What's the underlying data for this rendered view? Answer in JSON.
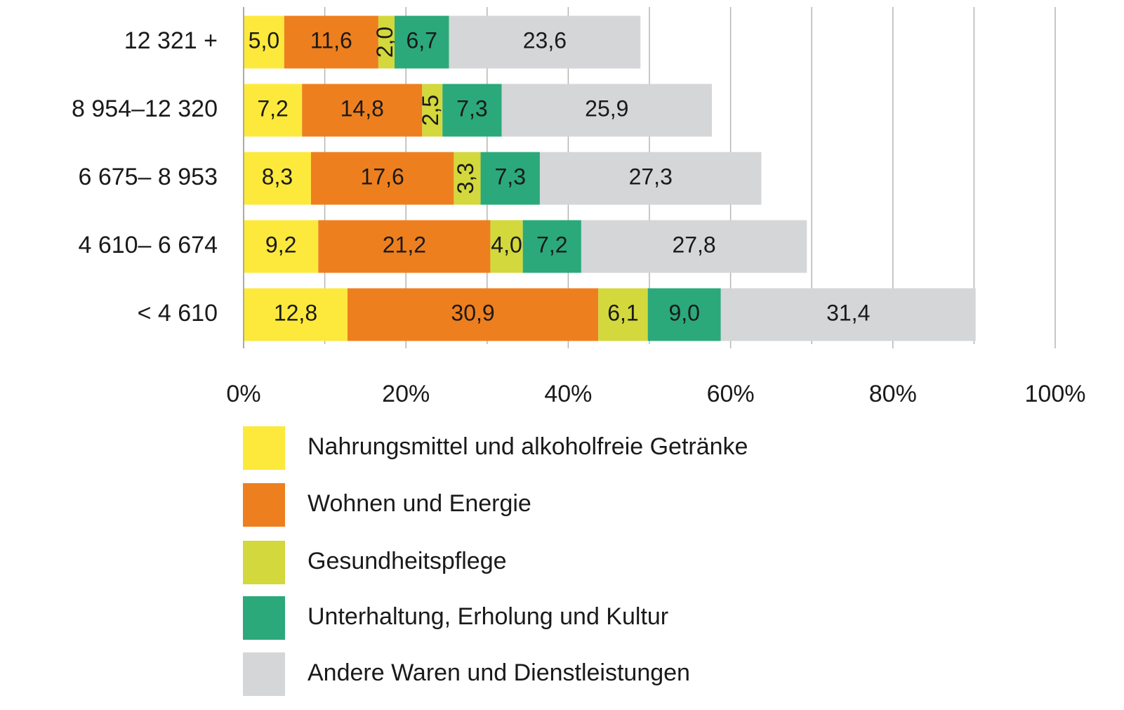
{
  "chart_data": {
    "type": "stacked_barh",
    "categories": [
      "12 321 +",
      "8 954–12 320",
      "6 675– 8 953",
      "4 610– 6 674",
      "< 4 610"
    ],
    "series": [
      {
        "name": "Nahrungsmittel und alkoholfreie Getränke",
        "color": "#fce93c",
        "values": [
          5.0,
          7.2,
          8.3,
          9.2,
          12.8
        ],
        "value_labels": [
          "5,0",
          "7,2",
          "8,3",
          "9,2",
          "12,8"
        ]
      },
      {
        "name": "Wohnen und Energie",
        "color": "#ee7f1e",
        "values": [
          11.6,
          14.8,
          17.6,
          21.2,
          30.9
        ],
        "value_labels": [
          "11,6",
          "14,8",
          "17,6",
          "21,2",
          "30,9"
        ]
      },
      {
        "name": "Gesundheitspflege",
        "color": "#d3d83c",
        "values": [
          2.0,
          2.5,
          3.3,
          4.0,
          6.1
        ],
        "value_labels": [
          "2,0",
          "2,5",
          "3,3",
          "4,0",
          "6,1"
        ]
      },
      {
        "name": "Unterhaltung, Erholung und Kultur",
        "color": "#2ba97a",
        "values": [
          6.7,
          7.3,
          7.3,
          7.2,
          9.0
        ],
        "value_labels": [
          "6,7",
          "7,3",
          "7,3",
          "7,2",
          "9,0"
        ]
      },
      {
        "name": "Andere Waren und Dienstleistungen",
        "color": "#d5d6d8",
        "values": [
          23.6,
          25.9,
          27.3,
          27.8,
          31.4
        ],
        "value_labels": [
          "23,6",
          "25,9",
          "27,3",
          "27,8",
          "31,4"
        ]
      }
    ],
    "xlim": [
      0,
      100
    ],
    "xticks": [
      {
        "value": 0,
        "label": "0%"
      },
      {
        "value": 20,
        "label": "20%"
      },
      {
        "value": 40,
        "label": "40%"
      },
      {
        "value": 60,
        "label": "60%"
      },
      {
        "value": 80,
        "label": "80%"
      },
      {
        "value": 100,
        "label": "100%"
      }
    ],
    "minor_xticks": [
      10,
      30,
      50,
      70,
      90
    ],
    "grid": true
  }
}
